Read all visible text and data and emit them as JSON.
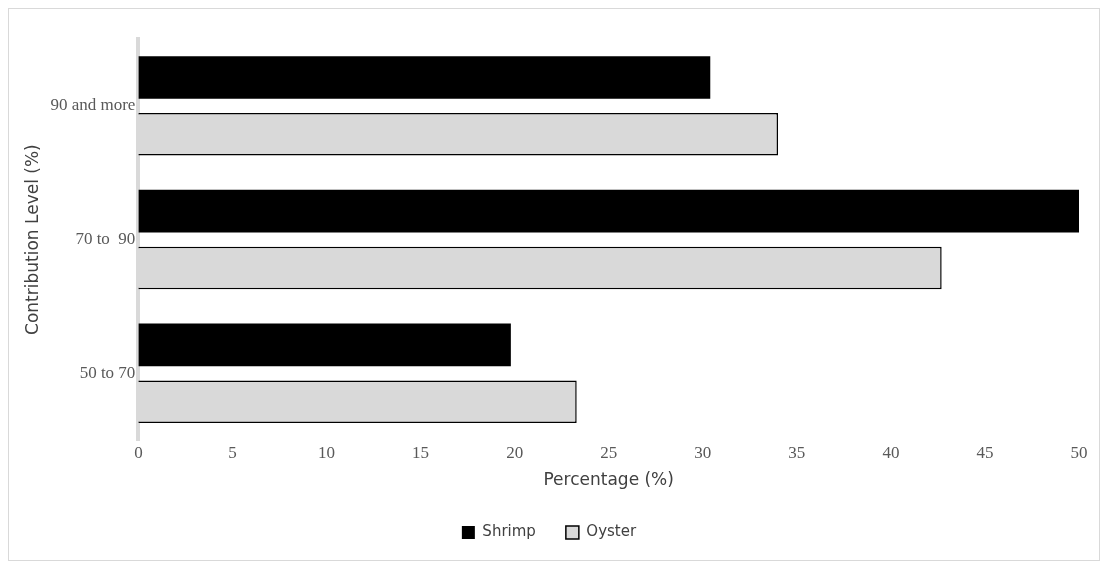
{
  "chart_data": {
    "type": "bar",
    "orientation": "horizontal",
    "xlabel": "Percentage (%)",
    "ylabel": "Contribution Level (%)",
    "categories": [
      "90 and more",
      "70 to  90",
      "50 to 70"
    ],
    "series": [
      {
        "name": "Shrimp",
        "color": "#000000",
        "values": [
          30.4,
          50,
          19.8
        ]
      },
      {
        "name": "Oyster",
        "color": "#d9d9d9",
        "values": [
          34.0,
          42.7,
          23.3
        ]
      }
    ],
    "xlim": [
      0,
      50
    ],
    "xticks": [
      0,
      5,
      10,
      15,
      20,
      25,
      30,
      35,
      40,
      45,
      50
    ],
    "grid": false,
    "legend": "bottom"
  }
}
